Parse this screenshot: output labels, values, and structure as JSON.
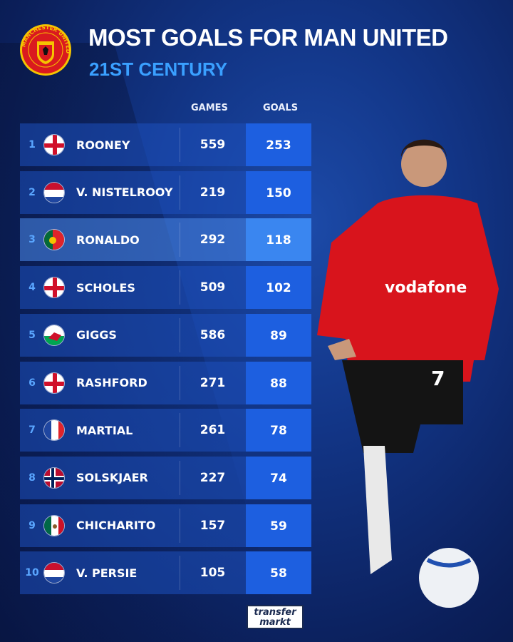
{
  "header": {
    "title": "MOST GOALS FOR MAN UNITED",
    "subtitle": "21ST CENTURY",
    "crest_text": "MANCHESTER UNITED"
  },
  "columns": {
    "games": "GAMES",
    "goals": "GOALS"
  },
  "rows": [
    {
      "rank": "1",
      "name": "ROONEY",
      "flag": "england",
      "games": "559",
      "goals": "253"
    },
    {
      "rank": "2",
      "name": "V. NISTELROOY",
      "flag": "netherlands",
      "games": "219",
      "goals": "150"
    },
    {
      "rank": "3",
      "name": "RONALDO",
      "flag": "portugal",
      "games": "292",
      "goals": "118",
      "highlight": true
    },
    {
      "rank": "4",
      "name": "SCHOLES",
      "flag": "england",
      "games": "509",
      "goals": "102"
    },
    {
      "rank": "5",
      "name": "GIGGS",
      "flag": "wales",
      "games": "586",
      "goals": "89"
    },
    {
      "rank": "6",
      "name": "RASHFORD",
      "flag": "england",
      "games": "271",
      "goals": "88"
    },
    {
      "rank": "7",
      "name": "MARTIAL",
      "flag": "france",
      "games": "261",
      "goals": "78"
    },
    {
      "rank": "8",
      "name": "SOLSKJAER",
      "flag": "norway",
      "games": "227",
      "goals": "74"
    },
    {
      "rank": "9",
      "name": "CHICHARITO",
      "flag": "mexico",
      "games": "157",
      "goals": "59"
    },
    {
      "rank": "10",
      "name": "V. PERSIE",
      "flag": "netherlands",
      "games": "105",
      "goals": "58"
    }
  ],
  "player_photo": {
    "shirt_sponsor": "vodafone",
    "shirt_number": "7"
  },
  "footer": {
    "logo_line1": "transfer",
    "logo_line2": "markt"
  },
  "colors": {
    "accent": "#3aa0ff",
    "goals_column": "#1d5fe0",
    "row": "#1e50be",
    "shirt": "#d8141c"
  }
}
